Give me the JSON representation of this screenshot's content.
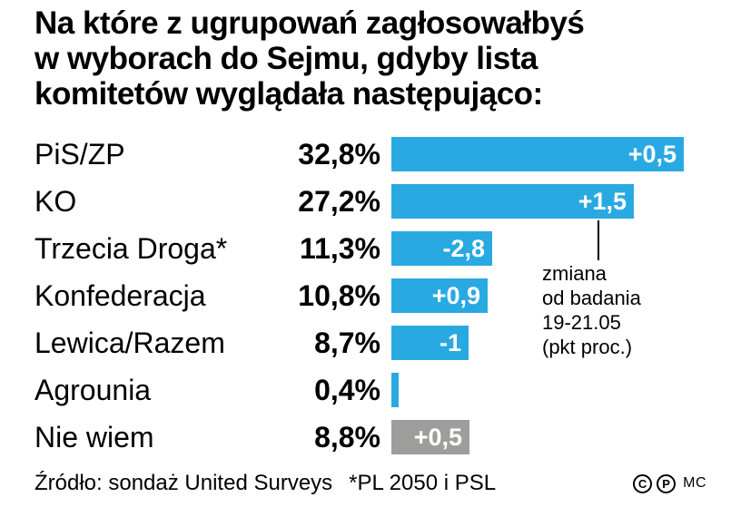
{
  "title": "Na które z ugrupowań zagłosowałbyś\nw wyborach do Sejmu, gdyby lista\nkomitetów wyglądała następująco:",
  "chart_data": {
    "type": "bar",
    "orientation": "horizontal",
    "title": "Na które z ugrupowań zagłosowałbyś w wyborach do Sejmu, gdyby lista komitetów wyglądała następująco:",
    "categories": [
      "PiS/ZP",
      "KO",
      "Trzecia Droga*",
      "Konfederacja",
      "Lewica/Razem",
      "Agrounia",
      "Nie wiem"
    ],
    "values": [
      32.8,
      27.2,
      11.3,
      10.8,
      8.7,
      0.4,
      8.8
    ],
    "value_labels": [
      "32,8%",
      "27,2%",
      "11,3%",
      "10,8%",
      "8,7%",
      "0,4%",
      "8,8%"
    ],
    "change_labels": [
      "+0,5",
      "+1,5",
      "-2,8",
      "+0,9",
      "-1",
      "",
      "+0,5"
    ],
    "bar_colors": [
      "#29a9e1",
      "#29a9e1",
      "#29a9e1",
      "#29a9e1",
      "#29a9e1",
      "#29a9e1",
      "#9d9d9c"
    ],
    "annotation": "zmiana\nod badania\n19-21.05\n(pkt proc.)",
    "annotation_points_to": "KO +1,5",
    "xlim": [
      0,
      33
    ],
    "grid": false,
    "legend_position": "none",
    "colors": {
      "bar_blue": "#29a9e1",
      "bar_gray": "#9d9d9c",
      "change_text": "#ffffff",
      "text": "#000000"
    }
  },
  "footer": {
    "source": "Źródło: sondaż United Surveys",
    "note": "*PL 2050 i PSL",
    "copyright_c": "C",
    "copyright_p": "P",
    "credit": "MC"
  }
}
